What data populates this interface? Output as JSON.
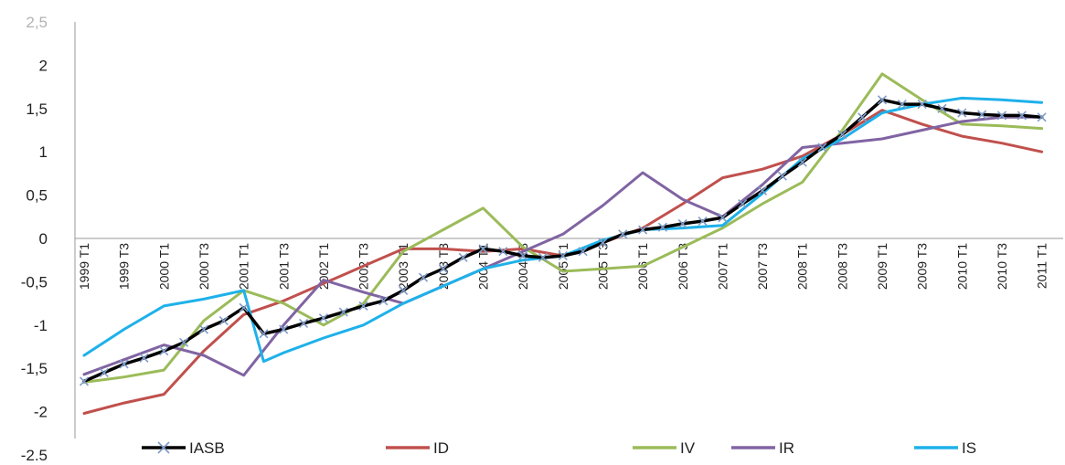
{
  "chart_data": {
    "type": "line",
    "title": "",
    "xlabel": "",
    "ylabel": "",
    "ylim": [
      -2.5,
      2.5
    ],
    "yticks": [
      -2.5,
      -2,
      -1.5,
      -1,
      -0.5,
      0,
      0.5,
      1,
      1.5,
      2,
      2.5
    ],
    "ytick_labels": [
      "-2,5",
      "-2",
      "-1,5",
      "-1",
      "-0,5",
      "0",
      "0,5",
      "1",
      "1,5",
      "2",
      "2,5"
    ],
    "x_labels": [
      "1999 T1",
      "1999 T3",
      "2000 T1",
      "2000 T3",
      "2001 T1",
      "2001 T3",
      "2002 T1",
      "2002 T3",
      "2003 T1",
      "2003 T3",
      "2004 T1",
      "2004 T3",
      "2005 T1",
      "2005 T3",
      "2006 T1",
      "2006 T3",
      "2007 T1",
      "2007 T3",
      "2008 T1",
      "2008 T3",
      "2009 T1",
      "2009 T3",
      "2010 T1",
      "2010 T3",
      "2011 T1"
    ],
    "legend_position": "bottom",
    "series": [
      {
        "name": "IASB",
        "color": "#000000",
        "marker": "x",
        "marker_color": "#7f9cc8",
        "x": [
          0,
          0.5,
          1,
          1.5,
          2,
          2.5,
          3,
          3.5,
          4,
          4.5,
          5,
          5.5,
          6,
          6.5,
          7,
          7.5,
          8,
          8.5,
          9,
          9.5,
          10,
          10.5,
          11,
          11.5,
          12,
          12.5,
          13,
          13.5,
          14,
          14.5,
          15,
          15.5,
          16,
          16.5,
          17,
          17.5,
          18,
          18.5,
          19,
          19.5,
          20,
          20.5,
          21,
          21.5,
          22,
          22.5,
          23,
          23.5,
          24
        ],
        "values": [
          -1.65,
          -1.55,
          -1.45,
          -1.38,
          -1.3,
          -1.2,
          -1.05,
          -0.95,
          -0.8,
          -1.1,
          -1.05,
          -0.98,
          -0.92,
          -0.85,
          -0.78,
          -0.72,
          -0.6,
          -0.45,
          -0.35,
          -0.22,
          -0.12,
          -0.15,
          -0.2,
          -0.22,
          -0.2,
          -0.15,
          -0.05,
          0.05,
          0.1,
          0.13,
          0.17,
          0.2,
          0.24,
          0.4,
          0.55,
          0.72,
          0.88,
          1.05,
          1.2,
          1.4,
          1.6,
          1.55,
          1.55,
          1.5,
          1.45,
          1.43,
          1.42,
          1.42,
          1.4
        ]
      },
      {
        "name": "ID",
        "color": "#c0504d",
        "x": [
          0,
          1,
          2,
          3,
          4,
          5,
          6,
          7,
          8,
          9,
          10,
          11,
          12,
          13,
          14,
          15,
          16,
          17,
          18,
          19,
          20,
          21,
          22,
          23,
          24
        ],
        "values": [
          -2.02,
          -1.9,
          -1.8,
          -1.3,
          -0.88,
          -0.72,
          -0.52,
          -0.32,
          -0.12,
          -0.12,
          -0.15,
          -0.12,
          -0.2,
          -0.05,
          0.12,
          0.4,
          0.7,
          0.8,
          0.95,
          1.2,
          1.48,
          1.32,
          1.18,
          1.1,
          1.0
        ]
      },
      {
        "name": "IV",
        "color": "#9bbb59",
        "x": [
          0,
          1,
          2,
          3,
          4,
          5,
          6,
          7,
          8,
          9,
          10,
          11,
          12,
          13,
          14,
          15,
          16,
          17,
          18,
          19,
          20,
          21,
          22,
          23,
          24
        ],
        "values": [
          -1.66,
          -1.6,
          -1.52,
          -0.95,
          -0.6,
          -0.75,
          -1.0,
          -0.75,
          -0.15,
          0.1,
          0.35,
          -0.1,
          -0.38,
          -0.35,
          -0.32,
          -0.1,
          0.12,
          0.4,
          0.65,
          1.25,
          1.9,
          1.6,
          1.32,
          1.3,
          1.27
        ]
      },
      {
        "name": "IR",
        "color": "#8064a2",
        "x": [
          0,
          1,
          2,
          3,
          4,
          5,
          6,
          7,
          8,
          9,
          10,
          11,
          12,
          13,
          14,
          15,
          16,
          17,
          18,
          19,
          20,
          21,
          22,
          23,
          24
        ],
        "values": [
          -1.57,
          -1.4,
          -1.23,
          -1.35,
          -1.58,
          -1.0,
          -0.48,
          -0.62,
          -0.75,
          -0.55,
          -0.35,
          -0.15,
          0.05,
          0.38,
          0.76,
          0.45,
          0.25,
          0.62,
          1.05,
          1.1,
          1.15,
          1.25,
          1.35,
          1.4,
          1.4
        ]
      },
      {
        "name": "IS",
        "color": "#1eb1ea",
        "x": [
          0,
          1,
          2,
          3,
          4,
          4.5,
          5,
          6,
          7,
          8,
          9,
          10,
          11,
          12,
          13,
          14,
          15,
          16,
          17,
          18,
          19,
          20,
          21,
          22,
          23,
          24
        ],
        "values": [
          -1.35,
          -1.05,
          -0.78,
          -0.7,
          -0.6,
          -1.42,
          -1.32,
          -1.15,
          -1.0,
          -0.75,
          -0.55,
          -0.35,
          -0.25,
          -0.2,
          -0.02,
          0.1,
          0.12,
          0.15,
          0.52,
          0.92,
          1.15,
          1.45,
          1.55,
          1.62,
          1.6,
          1.57
        ]
      }
    ]
  }
}
